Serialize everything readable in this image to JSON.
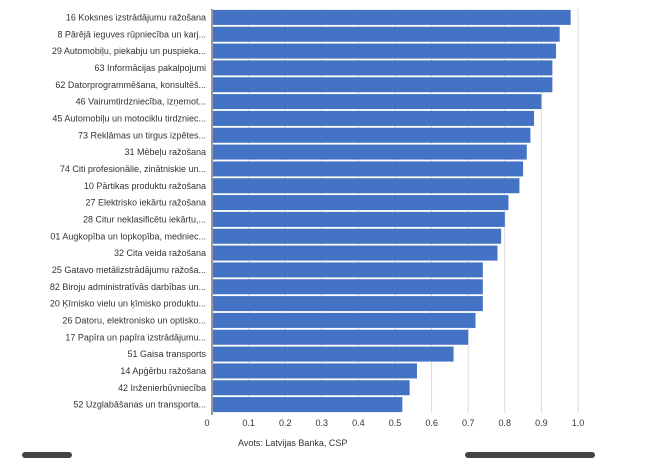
{
  "chart_data": {
    "type": "bar",
    "orientation": "horizontal",
    "categories": [
      "16 Koksnes izstrādājumu ražošana",
      "8 Pārējā ieguves rūpniecība un karj...",
      "29 Automobiļu, piekabju un puspieka...",
      "63 Informācijas pakalpojumi",
      "62 Datorprogrammēšana, konsultēš...",
      "46 Vairumtirdzniecība, izņemot...",
      "45 Automobiļu un motociklu tirdzniec...",
      "73 Reklāmas un tirgus izpētes...",
      "31 Mēbeļu ražošana",
      "74 Citi profesionālie, zinātniskie un...",
      "10 Pārtikas produktu ražošana",
      "27 Elektrisko iekārtu ražošana",
      "28 Citur neklasificētu iekārtu,...",
      "01 Augkopība un lopkopība, medniec...",
      "32 Cita veida ražošana",
      "25 Gatavo metālizstrādājumu ražoša...",
      "82 Biroju administratīvās darbības un...",
      "20 Ķīmisko vielu un ķīmisko produktu...",
      "26 Datoru, elektronisko un optisko...",
      "17 Papīra un papīra izstrādājumu...",
      "51 Gaisa transports",
      "14 Apģērbu ražošana",
      "42 Inženierbūvniecība",
      "52 Uzglabāšanas un transporta..."
    ],
    "values": [
      0.98,
      0.95,
      0.94,
      0.93,
      0.93,
      0.9,
      0.88,
      0.87,
      0.86,
      0.85,
      0.84,
      0.81,
      0.8,
      0.79,
      0.78,
      0.74,
      0.74,
      0.74,
      0.72,
      0.7,
      0.66,
      0.56,
      0.54,
      0.52
    ],
    "xlim": [
      0,
      1.0
    ],
    "xticks": [
      "0",
      "0.1",
      "0.2",
      "0.3",
      "0.4",
      "0.5",
      "0.6",
      "0.7",
      "0.8",
      "0.9",
      "1.0"
    ],
    "grid": true,
    "source": "Avots: Latvijas Banka, CSP",
    "bar_color": "#4472c4"
  }
}
